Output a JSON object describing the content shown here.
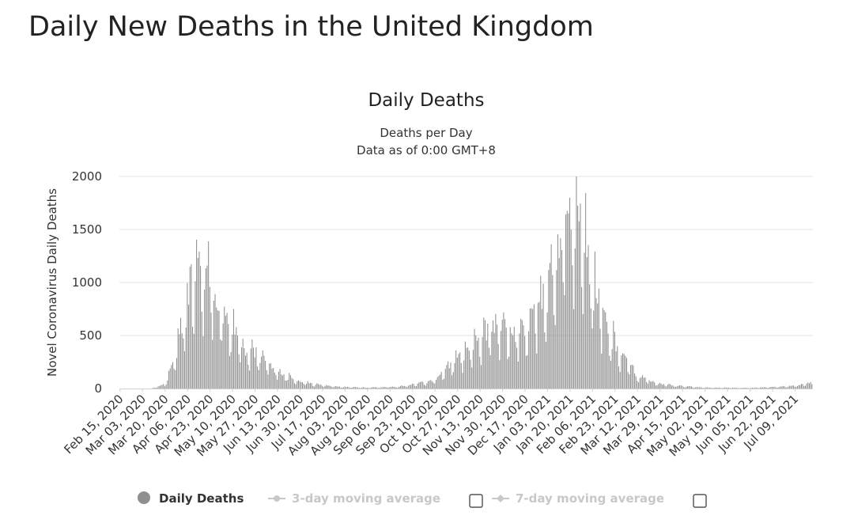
{
  "page": {
    "title": "Daily New Deaths in the United Kingdom"
  },
  "chart_data": {
    "type": "bar",
    "title": "Daily Deaths",
    "subtitle_lines": [
      "Deaths per Day",
      "Data as of 0:00 GMT+8"
    ],
    "ylabel": "Novel Coronavirus Daily Deaths",
    "xlabel": "",
    "ylim": [
      0,
      2000
    ],
    "yticks": [
      0,
      500,
      1000,
      1500,
      2000
    ],
    "grid": true,
    "bar_color": "#8f8f8f",
    "start_date": "2020-02-15",
    "end_date": "2021-07-22",
    "x_tick_labels": [
      "Feb 15, 2020",
      "Mar 03, 2020",
      "Mar 20, 2020",
      "Apr 06, 2020",
      "Apr 23, 2020",
      "May 10, 2020",
      "May 27, 2020",
      "Jun 13, 2020",
      "Jun 30, 2020",
      "Jul 17, 2020",
      "Aug 03, 2020",
      "Aug 20, 2020",
      "Sep 06, 2020",
      "Sep 23, 2020",
      "Oct 10, 2020",
      "Oct 27, 2020",
      "Nov 13, 2020",
      "Nov 30, 2020",
      "Dec 17, 2020",
      "Jan 03, 2021",
      "Jan 20, 2021",
      "Feb 06, 2021",
      "Feb 23, 2021",
      "Mar 12, 2021",
      "Mar 29, 2021",
      "Apr 15, 2021",
      "May 02, 2021",
      "May 19, 2021",
      "Jun 05, 2021",
      "Jun 22, 2021",
      "Jul 09, 2021"
    ],
    "series": [
      {
        "name": "Daily Deaths",
        "visible": true,
        "anchors": [
          {
            "date": "2020-02-15",
            "value": 0
          },
          {
            "date": "2020-03-10",
            "value": 0
          },
          {
            "date": "2020-03-20",
            "value": 40
          },
          {
            "date": "2020-03-28",
            "value": 280
          },
          {
            "date": "2020-04-04",
            "value": 700
          },
          {
            "date": "2020-04-10",
            "value": 1000
          },
          {
            "date": "2020-04-21",
            "value": 1100
          },
          {
            "date": "2020-05-01",
            "value": 700
          },
          {
            "date": "2020-05-10",
            "value": 550
          },
          {
            "date": "2020-05-20",
            "value": 350
          },
          {
            "date": "2020-05-31",
            "value": 300
          },
          {
            "date": "2020-06-10",
            "value": 180
          },
          {
            "date": "2020-06-25",
            "value": 80
          },
          {
            "date": "2020-07-10",
            "value": 40
          },
          {
            "date": "2020-08-01",
            "value": 15
          },
          {
            "date": "2020-08-20",
            "value": 8
          },
          {
            "date": "2020-09-10",
            "value": 15
          },
          {
            "date": "2020-09-25",
            "value": 40
          },
          {
            "date": "2020-10-10",
            "value": 80
          },
          {
            "date": "2020-10-25",
            "value": 250
          },
          {
            "date": "2020-11-10",
            "value": 450
          },
          {
            "date": "2020-11-25",
            "value": 550
          },
          {
            "date": "2020-12-10",
            "value": 500
          },
          {
            "date": "2020-12-20",
            "value": 550
          },
          {
            "date": "2021-01-01",
            "value": 850
          },
          {
            "date": "2021-01-12",
            "value": 1300
          },
          {
            "date": "2021-01-20",
            "value": 1600
          },
          {
            "date": "2021-01-27",
            "value": 1500
          },
          {
            "date": "2021-02-06",
            "value": 1000
          },
          {
            "date": "2021-02-17",
            "value": 550
          },
          {
            "date": "2021-02-28",
            "value": 300
          },
          {
            "date": "2021-03-12",
            "value": 120
          },
          {
            "date": "2021-03-25",
            "value": 50
          },
          {
            "date": "2021-04-10",
            "value": 25
          },
          {
            "date": "2021-05-02",
            "value": 8
          },
          {
            "date": "2021-06-05",
            "value": 6
          },
          {
            "date": "2021-06-22",
            "value": 12
          },
          {
            "date": "2021-07-09",
            "value": 25
          },
          {
            "date": "2021-07-22",
            "value": 50
          }
        ],
        "peaks": [
          {
            "date": "2020-04-08",
            "value": 1150
          },
          {
            "date": "2020-04-21",
            "value": 1160
          },
          {
            "date": "2021-01-20",
            "value": 1800
          },
          {
            "date": "2021-01-26",
            "value": 1725
          }
        ]
      },
      {
        "name": "3-day moving average",
        "visible": false
      },
      {
        "name": "7-day moving average",
        "visible": false
      }
    ]
  },
  "legend": {
    "items": [
      {
        "label": "Daily Deaths",
        "active": true,
        "color": "#8f8f8f"
      },
      {
        "label": "3-day moving average",
        "active": false,
        "color": "#c8c8c8"
      },
      {
        "label": "7-day moving average",
        "active": false,
        "color": "#c8c8c8"
      }
    ]
  }
}
